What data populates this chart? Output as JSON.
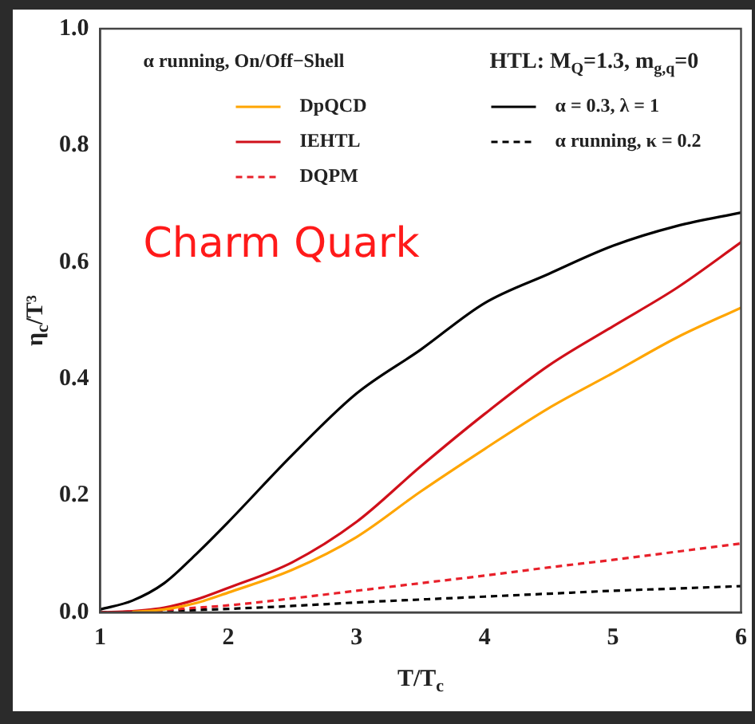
{
  "chart_data": {
    "type": "line",
    "xlabel": "T/T$_{c}$",
    "ylabel": "η$_{c}$/T³",
    "legend_title": "α running, On/Off−Shell",
    "annotations": [
      "HTL: M$_{Q}$=1.3, m$_{g,q}$=0",
      "Charm Quark"
    ],
    "x": [
      1,
      1.25,
      1.5,
      1.75,
      2,
      2.5,
      3,
      3.5,
      4,
      4.5,
      5,
      5.5,
      6
    ],
    "series": [
      {
        "name": "DpQCD",
        "color": "#ffa500",
        "values": [
          null,
          0.001,
          0.005,
          0.016,
          0.034,
          0.073,
          0.129,
          0.207,
          0.28,
          0.35,
          0.41,
          0.471,
          0.522
        ]
      },
      {
        "name": "IEHTL",
        "color": "#d0101a",
        "values": [
          0,
          0.002,
          0.008,
          0.022,
          0.042,
          0.086,
          0.155,
          0.25,
          0.34,
          0.423,
          0.49,
          0.556,
          0.634
        ]
      },
      {
        "name": "DQPM",
        "color": "#e8202a",
        "line_style": "dashed",
        "values": [
          0,
          0.001,
          0.004,
          0.008,
          0.012,
          0.024,
          0.037,
          0.05,
          0.063,
          0.077,
          0.09,
          0.104,
          0.118
        ]
      },
      {
        "name": "α = 0.3, λ = 1",
        "color": "#000000",
        "values": [
          0.005,
          0.02,
          0.05,
          0.1,
          0.155,
          0.27,
          0.375,
          0.45,
          0.53,
          0.58,
          0.628,
          0.662,
          0.685
        ]
      },
      {
        "name": "α running, κ = 0.2",
        "color": "#000000",
        "line_style": "dashed",
        "values": [
          0,
          0.001,
          0.002,
          0.004,
          0.006,
          0.011,
          0.017,
          0.022,
          0.027,
          0.032,
          0.037,
          0.041,
          0.045
        ]
      }
    ],
    "xlim": [
      1,
      6
    ],
    "xticks": [
      1,
      2,
      3,
      4,
      5,
      6
    ],
    "ylim": [
      0,
      1
    ],
    "yticks": [
      {
        "value": 0,
        "label": "0.0"
      },
      {
        "value": 0.2,
        "label": "0.2"
      },
      {
        "value": 0.4,
        "label": "0.4"
      },
      {
        "value": 0.6,
        "label": "0.6"
      },
      {
        "value": 0.8,
        "label": "0.8"
      },
      {
        "value": 1,
        "label": "1.0"
      }
    ],
    "grid": false,
    "legend": "top",
    "marker": "none",
    "line_style": "solid"
  }
}
